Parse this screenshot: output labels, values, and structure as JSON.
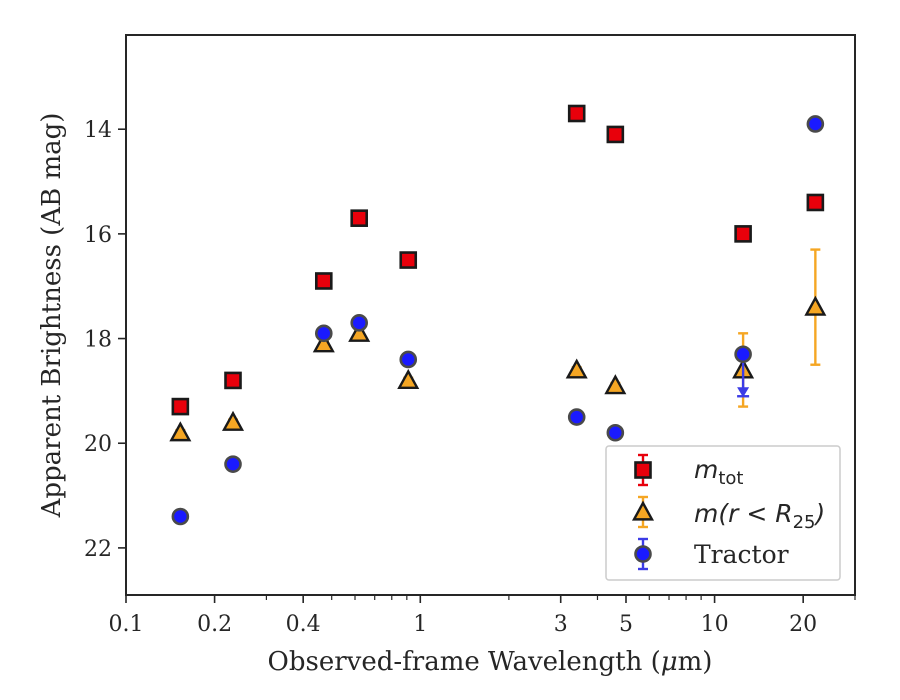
{
  "chart_data": {
    "type": "scatter",
    "xscale": "log",
    "yaxis_inverted": true,
    "xlim": [
      0.1,
      30
    ],
    "ylim": [
      22.9,
      12.2
    ],
    "xlabel_prefix": "Observed-frame Wavelength (",
    "xlabel_unit_mu": "μ",
    "xlabel_unit_rest": "m)",
    "ylabel": "Apparent Brightness (AB mag)",
    "x_ticks": [
      {
        "value": 0.1,
        "label": "0.1"
      },
      {
        "value": 0.2,
        "label": "0.2"
      },
      {
        "value": 0.4,
        "label": "0.4"
      },
      {
        "value": 1,
        "label": "1"
      },
      {
        "value": 3,
        "label": "3"
      },
      {
        "value": 5,
        "label": "5"
      },
      {
        "value": 10,
        "label": "10"
      },
      {
        "value": 20,
        "label": "20"
      }
    ],
    "x_minor_ticks": [
      0.3,
      0.5,
      0.6,
      0.7,
      0.8,
      0.9,
      2,
      4,
      6,
      7,
      8,
      9,
      30
    ],
    "y_ticks": [
      {
        "value": 14,
        "label": "14"
      },
      {
        "value": 16,
        "label": "16"
      },
      {
        "value": 18,
        "label": "18"
      },
      {
        "value": 20,
        "label": "20"
      },
      {
        "value": 22,
        "label": "22"
      }
    ],
    "legend_position": "lower right",
    "series": [
      {
        "name": "m_tot",
        "legend_math": "m",
        "legend_sub": "tot",
        "marker": "square",
        "fill": "#e8000b",
        "edge": "#1a1a1a",
        "errcolor": "#e8000b",
        "x": [
          0.153,
          0.231,
          0.47,
          0.62,
          0.91,
          3.4,
          4.6,
          12.5,
          22
        ],
        "y": [
          19.3,
          18.8,
          16.9,
          15.7,
          16.5,
          13.7,
          14.1,
          16.0,
          15.4
        ],
        "yerr": [
          0.05,
          0.05,
          0.05,
          0.05,
          0.05,
          0.05,
          0.05,
          0.05,
          0.05
        ],
        "upper_limit": [
          false,
          false,
          false,
          false,
          false,
          false,
          false,
          false,
          false
        ]
      },
      {
        "name": "m(r < R_25)",
        "legend_math": "m(r < R",
        "legend_sub": "25",
        "legend_tail": ")",
        "marker": "triangle",
        "fill": "#f5a623",
        "edge": "#1a1a1a",
        "errcolor": "#f5a623",
        "x": [
          0.153,
          0.231,
          0.47,
          0.62,
          0.91,
          3.4,
          4.6,
          12.5,
          22
        ],
        "y": [
          19.8,
          19.6,
          18.1,
          17.9,
          18.8,
          18.6,
          18.9,
          18.6,
          17.4
        ],
        "yerr": [
          0.05,
          0.05,
          0.05,
          0.05,
          0.05,
          0.05,
          0.05,
          0.7,
          1.1
        ],
        "upper_limit": [
          false,
          false,
          false,
          false,
          false,
          false,
          false,
          false,
          false
        ]
      },
      {
        "name": "Tractor",
        "legend_text": "Tractor",
        "marker": "circle",
        "fill": "#1a1aff",
        "edge": "#4a4a4a",
        "errcolor": "#3c3ce6",
        "x": [
          0.153,
          0.231,
          0.47,
          0.62,
          0.91,
          3.4,
          4.6,
          12.5,
          22
        ],
        "y": [
          21.4,
          20.4,
          17.9,
          17.7,
          18.4,
          19.5,
          19.8,
          18.3,
          13.9
        ],
        "yerr": [
          0.05,
          0.05,
          0.05,
          0.05,
          0.05,
          0.05,
          0.05,
          0.05,
          0.05
        ],
        "upper_limit": [
          false,
          false,
          false,
          false,
          false,
          false,
          false,
          true,
          false
        ]
      }
    ]
  }
}
